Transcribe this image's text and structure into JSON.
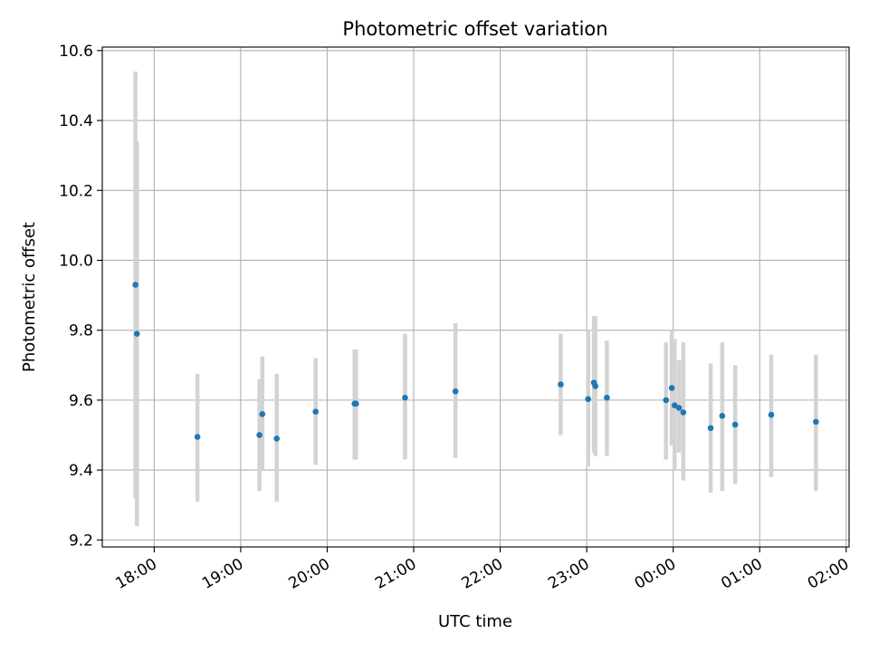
{
  "chart_data": {
    "type": "scatter",
    "title": "Photometric offset variation",
    "xlabel": "UTC time",
    "ylabel": "Photometric offset",
    "x_axis_type": "time",
    "x_range": [
      "17:24",
      "02:02"
    ],
    "ylim": [
      9.18,
      10.61
    ],
    "x_ticks": [
      "18:00",
      "19:00",
      "20:00",
      "21:00",
      "22:00",
      "23:00",
      "00:00",
      "01:00",
      "02:00"
    ],
    "y_ticks": [
      "9.2",
      "9.4",
      "9.6",
      "9.8",
      "10.0",
      "10.2",
      "10.4",
      "10.6"
    ],
    "grid": true,
    "colors": {
      "point": "#1f77b4",
      "errorbar": "#d3d3d3",
      "grid": "#b0b0b0"
    },
    "series": [
      {
        "points": [
          {
            "x": "17:47",
            "y": 9.93,
            "ylo": 9.32,
            "yhi": 10.54
          },
          {
            "x": "17:48",
            "y": 9.79,
            "ylo": 9.24,
            "yhi": 10.34
          },
          {
            "x": "18:30",
            "y": 9.495,
            "ylo": 9.31,
            "yhi": 9.675
          },
          {
            "x": "19:13",
            "y": 9.5,
            "ylo": 9.34,
            "yhi": 9.66
          },
          {
            "x": "19:15",
            "y": 9.56,
            "ylo": 9.4,
            "yhi": 9.725
          },
          {
            "x": "19:25",
            "y": 9.49,
            "ylo": 9.31,
            "yhi": 9.675
          },
          {
            "x": "19:52",
            "y": 9.567,
            "ylo": 9.415,
            "yhi": 9.72
          },
          {
            "x": "20:19",
            "y": 9.59,
            "ylo": 9.43,
            "yhi": 9.745
          },
          {
            "x": "20:20",
            "y": 9.59,
            "ylo": 9.43,
            "yhi": 9.745
          },
          {
            "x": "20:54",
            "y": 9.607,
            "ylo": 9.43,
            "yhi": 9.79
          },
          {
            "x": "21:29",
            "y": 9.625,
            "ylo": 9.435,
            "yhi": 9.82
          },
          {
            "x": "22:42",
            "y": 9.645,
            "ylo": 9.5,
            "yhi": 9.79
          },
          {
            "x": "23:01",
            "y": 9.603,
            "ylo": 9.41,
            "yhi": 9.8
          },
          {
            "x": "23:05",
            "y": 9.65,
            "ylo": 9.45,
            "yhi": 9.84
          },
          {
            "x": "23:06",
            "y": 9.64,
            "ylo": 9.44,
            "yhi": 9.84
          },
          {
            "x": "23:14",
            "y": 9.607,
            "ylo": 9.44,
            "yhi": 9.77
          },
          {
            "x": "23:55",
            "y": 9.6,
            "ylo": 9.43,
            "yhi": 9.765
          },
          {
            "x": "23:59",
            "y": 9.635,
            "ylo": 9.47,
            "yhi": 9.8
          },
          {
            "x": "00:01",
            "y": 9.585,
            "ylo": 9.4,
            "yhi": 9.775
          },
          {
            "x": "00:04",
            "y": 9.578,
            "ylo": 9.45,
            "yhi": 9.715
          },
          {
            "x": "00:07",
            "y": 9.565,
            "ylo": 9.37,
            "yhi": 9.765
          },
          {
            "x": "00:26",
            "y": 9.52,
            "ylo": 9.335,
            "yhi": 9.705
          },
          {
            "x": "00:34",
            "y": 9.555,
            "ylo": 9.34,
            "yhi": 9.765
          },
          {
            "x": "00:43",
            "y": 9.53,
            "ylo": 9.36,
            "yhi": 9.7
          },
          {
            "x": "01:08",
            "y": 9.558,
            "ylo": 9.38,
            "yhi": 9.73
          },
          {
            "x": "01:39",
            "y": 9.538,
            "ylo": 9.34,
            "yhi": 9.73
          }
        ]
      }
    ]
  }
}
